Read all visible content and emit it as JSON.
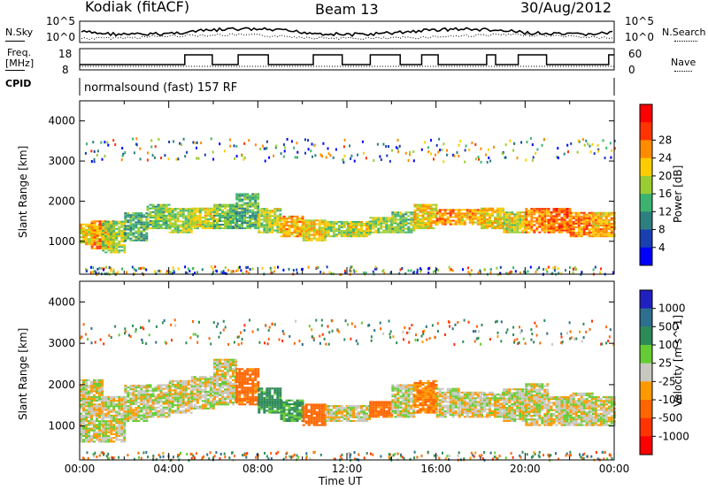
{
  "header": {
    "station": "Kodiak (fitACF)",
    "beam": "Beam 13",
    "date": "30/Aug/2012"
  },
  "strips": {
    "nsky_label": "N.Sky",
    "nsearch_label": "N.Search",
    "freq_label": "Freq.",
    "freq_unit": "[MHz]",
    "nave_label": "Nave",
    "cpid_label": "CPID",
    "cpid_value": "normalsound (fast) 157 RF",
    "left_ticks_top": [
      "10^5",
      "10^0"
    ],
    "right_ticks_top": [
      "10^5",
      "10^0"
    ],
    "freq_ticks": [
      "18",
      "8"
    ],
    "nave_ticks": [
      "60",
      "0"
    ]
  },
  "chart_data": [
    {
      "type": "heatmap",
      "title": "Power",
      "ylabel": "Slant Range [km]",
      "xlabel": "Time UT",
      "x_ticks": [
        "00:00",
        "04:00",
        "08:00",
        "12:00",
        "16:00",
        "20:00",
        "00:00"
      ],
      "y_ticks": [
        1000,
        2000,
        3000,
        4000
      ],
      "ylim": [
        180,
        4500
      ],
      "colorbar_label": "Power [dB]",
      "colorbar_ticks": [
        4,
        8,
        12,
        16,
        20,
        24,
        28
      ],
      "colorbar_colors": [
        "#0000ff",
        "#1a3fb0",
        "#2e7f7f",
        "#3cb371",
        "#9acd32",
        "#ffcc00",
        "#ff8c00",
        "#ff3300",
        "#ff0000"
      ],
      "bands": [
        {
          "t": 0.0,
          "lo": 900,
          "hi": 1400,
          "v": 22
        },
        {
          "t": 0.5,
          "lo": 800,
          "hi": 1500,
          "v": 26
        },
        {
          "t": 1.0,
          "lo": 700,
          "hi": 1500,
          "v": 18
        },
        {
          "t": 2.0,
          "lo": 1000,
          "hi": 1700,
          "v": 14
        },
        {
          "t": 3.0,
          "lo": 1300,
          "hi": 1900,
          "v": 16
        },
        {
          "t": 4.0,
          "lo": 1200,
          "hi": 1800,
          "v": 18
        },
        {
          "t": 5.0,
          "lo": 1300,
          "hi": 1800,
          "v": 20
        },
        {
          "t": 6.0,
          "lo": 1300,
          "hi": 1900,
          "v": 16
        },
        {
          "t": 7.0,
          "lo": 1300,
          "hi": 2200,
          "v": 14
        },
        {
          "t": 8.0,
          "lo": 1200,
          "hi": 1800,
          "v": 20
        },
        {
          "t": 9.0,
          "lo": 1100,
          "hi": 1600,
          "v": 24
        },
        {
          "t": 10.0,
          "lo": 1000,
          "hi": 1500,
          "v": 22
        },
        {
          "t": 11.0,
          "lo": 1100,
          "hi": 1500,
          "v": 18
        },
        {
          "t": 12.0,
          "lo": 1100,
          "hi": 1500,
          "v": 20
        },
        {
          "t": 13.0,
          "lo": 1200,
          "hi": 1600,
          "v": 18
        },
        {
          "t": 14.0,
          "lo": 1200,
          "hi": 1700,
          "v": 16
        },
        {
          "t": 15.0,
          "lo": 1300,
          "hi": 1900,
          "v": 22
        },
        {
          "t": 16.0,
          "lo": 1400,
          "hi": 1800,
          "v": 26
        },
        {
          "t": 17.0,
          "lo": 1400,
          "hi": 1800,
          "v": 24
        },
        {
          "t": 18.0,
          "lo": 1300,
          "hi": 1800,
          "v": 22
        },
        {
          "t": 19.0,
          "lo": 1200,
          "hi": 1700,
          "v": 20
        },
        {
          "t": 20.0,
          "lo": 1200,
          "hi": 1800,
          "v": 26
        },
        {
          "t": 21.0,
          "lo": 1200,
          "hi": 1800,
          "v": 28
        },
        {
          "t": 22.0,
          "lo": 1100,
          "hi": 1700,
          "v": 26
        },
        {
          "t": 23.0,
          "lo": 1100,
          "hi": 1700,
          "v": 24
        }
      ]
    },
    {
      "type": "heatmap",
      "title": "Velocity",
      "ylabel": "Slant Range [km]",
      "xlabel": "Time UT",
      "x_ticks": [
        "00:00",
        "04:00",
        "08:00",
        "12:00",
        "16:00",
        "20:00",
        "00:00"
      ],
      "y_ticks": [
        1000,
        2000,
        3000,
        4000
      ],
      "ylim": [
        180,
        4500
      ],
      "colorbar_label": "Velocity [m s^-1]",
      "colorbar_ticks": [
        "1000",
        "500",
        "100",
        "25",
        "-25",
        "-100",
        "-500",
        "-1000"
      ],
      "colorbar_colors": [
        "#2020c0",
        "#2e6e8e",
        "#2e8b57",
        "#66cc33",
        "#c8c8c0",
        "#ff9900",
        "#ff6600",
        "#ff3300",
        "#ff0000"
      ],
      "bands": [
        {
          "t": 0.0,
          "lo": 600,
          "hi": 2100,
          "v": 0
        },
        {
          "t": 1.0,
          "lo": 600,
          "hi": 1700,
          "v": 0
        },
        {
          "t": 2.0,
          "lo": 1100,
          "hi": 2000,
          "v": 0
        },
        {
          "t": 3.0,
          "lo": 1200,
          "hi": 2000,
          "v": 0
        },
        {
          "t": 4.0,
          "lo": 1300,
          "hi": 2100,
          "v": 0
        },
        {
          "t": 5.0,
          "lo": 1400,
          "hi": 2200,
          "v": 0
        },
        {
          "t": 6.0,
          "lo": 1500,
          "hi": 2600,
          "v": 0
        },
        {
          "t": 7.0,
          "lo": 1500,
          "hi": 2400,
          "v": -150
        },
        {
          "t": 8.0,
          "lo": 1300,
          "hi": 1900,
          "v": 150
        },
        {
          "t": 9.0,
          "lo": 1100,
          "hi": 1600,
          "v": 120
        },
        {
          "t": 10.0,
          "lo": 1000,
          "hi": 1500,
          "v": -200
        },
        {
          "t": 11.0,
          "lo": 1100,
          "hi": 1500,
          "v": 0
        },
        {
          "t": 12.0,
          "lo": 1100,
          "hi": 1500,
          "v": 0
        },
        {
          "t": 13.0,
          "lo": 1200,
          "hi": 1600,
          "v": -150
        },
        {
          "t": 14.0,
          "lo": 1200,
          "hi": 2000,
          "v": 0
        },
        {
          "t": 15.0,
          "lo": 1300,
          "hi": 2100,
          "v": -100
        },
        {
          "t": 16.0,
          "lo": 1200,
          "hi": 1900,
          "v": 0
        },
        {
          "t": 17.0,
          "lo": 1200,
          "hi": 1800,
          "v": 0
        },
        {
          "t": 18.0,
          "lo": 1200,
          "hi": 1800,
          "v": 0
        },
        {
          "t": 19.0,
          "lo": 1100,
          "hi": 1900,
          "v": 0
        },
        {
          "t": 20.0,
          "lo": 1000,
          "hi": 2000,
          "v": 0
        },
        {
          "t": 21.0,
          "lo": 1000,
          "hi": 1700,
          "v": 0
        },
        {
          "t": 22.0,
          "lo": 1000,
          "hi": 1800,
          "v": 0
        },
        {
          "t": 23.0,
          "lo": 1000,
          "hi": 1700,
          "v": 0
        }
      ]
    }
  ]
}
